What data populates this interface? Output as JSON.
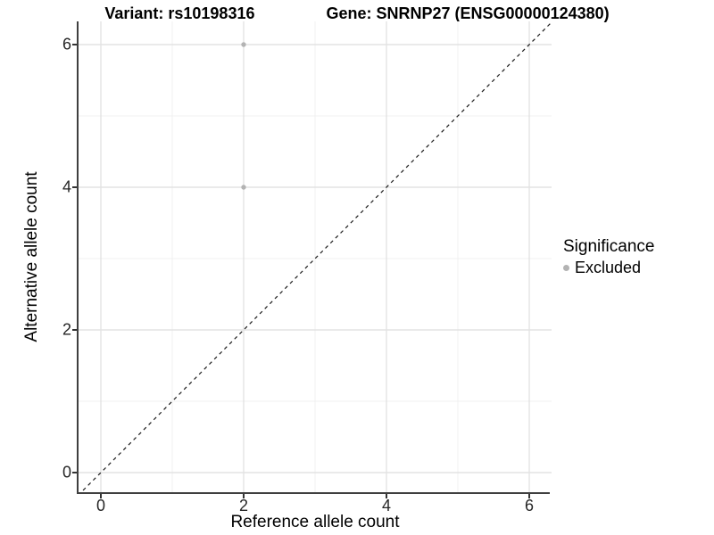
{
  "header": {
    "variant_title": "Variant: rs10198316",
    "gene_title": "Gene: SNRNP27 (ENSG00000124380)"
  },
  "axes": {
    "x_label": "Reference allele count",
    "y_label": "Alternative allele count"
  },
  "legend": {
    "title": "Significance",
    "items": [
      {
        "label": "Excluded",
        "color": "#b3b3b3"
      }
    ]
  },
  "chart_data": {
    "type": "scatter",
    "title": "Variant: rs10198316    Gene: SNRNP27 (ENSG00000124380)",
    "xlabel": "Reference allele count",
    "ylabel": "Alternative allele count",
    "xlim": [
      -0.32,
      6.42
    ],
    "ylim": [
      -0.3,
      6.4
    ],
    "x_ticks": [
      0,
      2,
      4,
      6
    ],
    "y_ticks": [
      0,
      2,
      4,
      6
    ],
    "grid_values": [
      0,
      1,
      2,
      3,
      4,
      5,
      6
    ],
    "grid": true,
    "legend_position": "right",
    "series": [
      {
        "name": "Excluded",
        "color": "#b3b3b3",
        "points": [
          {
            "x": 2,
            "y": 6
          },
          {
            "x": 2,
            "y": 4
          }
        ]
      }
    ],
    "reference_line": {
      "kind": "identity y = x",
      "from": [
        -0.32,
        -0.32
      ],
      "to": [
        6.42,
        6.42
      ],
      "style": "dashed",
      "color": "#1a1a1a"
    }
  },
  "colors": {
    "background": "#ffffff",
    "grid_major": "#e3e3e3",
    "grid_minor": "#f0f0f0",
    "axis_line": "#3f3f3f",
    "tick_mark": "#333333",
    "tick_label": "#262626",
    "title_text": "#000000",
    "point": "#b3b3b3"
  }
}
